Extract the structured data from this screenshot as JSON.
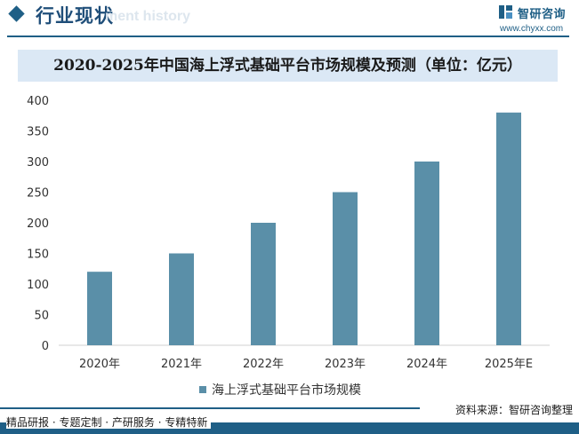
{
  "header": {
    "title": "行业现状",
    "watermark_text": "ment history",
    "brand_name": "智研咨询",
    "brand_url": "www.chyxx.com"
  },
  "chart_data": {
    "type": "bar",
    "title": "2020-2025年中国海上浮式基础平台市场规模及预测（单位：亿元）",
    "categories": [
      "2020年",
      "2021年",
      "2022年",
      "2023年",
      "2024年",
      "2025年E"
    ],
    "series": [
      {
        "name": "海上浮式基础平台市场规模",
        "values": [
          120,
          150,
          200,
          250,
          300,
          380
        ]
      }
    ],
    "ylim": [
      0,
      400
    ],
    "yticks": [
      0,
      50,
      100,
      150,
      200,
      250,
      300,
      350,
      400
    ],
    "grid": false,
    "legend_position": "bottom",
    "color": "#5a8fa8"
  },
  "footer": {
    "source": "资料来源：智研咨询整理",
    "slogan": "精品研报 · 专题定制 · 产研服务 · 专精特新"
  }
}
